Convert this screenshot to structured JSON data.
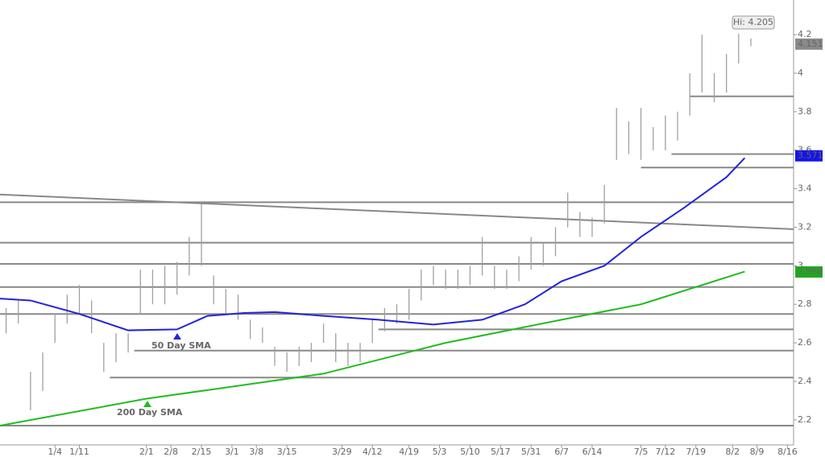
{
  "chart_data": {
    "type": "ohlc",
    "xlim": [
      -9,
      121
    ],
    "ylim": [
      2.07,
      4.38
    ],
    "yticks": [
      2.2,
      2.4,
      2.6,
      2.8,
      3,
      3.2,
      3.4,
      3.6,
      3.8,
      4,
      4.2
    ],
    "xticks": [
      {
        "value": 0,
        "label": "1/4"
      },
      {
        "value": 4,
        "label": "1/11"
      },
      {
        "value": 15,
        "label": "2/1"
      },
      {
        "value": 19,
        "label": "2/8"
      },
      {
        "value": 24,
        "label": "2/15"
      },
      {
        "value": 29,
        "label": "3/1"
      },
      {
        "value": 33,
        "label": "3/8"
      },
      {
        "value": 38,
        "label": "3/15"
      },
      {
        "value": 47,
        "label": "3/29"
      },
      {
        "value": 52,
        "label": "4/12"
      },
      {
        "value": 58,
        "label": "4/19"
      },
      {
        "value": 63,
        "label": "5/3"
      },
      {
        "value": 68,
        "label": "5/10"
      },
      {
        "value": 73,
        "label": "5/17"
      },
      {
        "value": 78,
        "label": "5/31"
      },
      {
        "value": 83,
        "label": "6/7"
      },
      {
        "value": 88,
        "label": "6/14"
      },
      {
        "value": 96,
        "label": "7/5"
      },
      {
        "value": 100,
        "label": "7/12"
      },
      {
        "value": 105,
        "label": "7/19"
      },
      {
        "value": 111,
        "label": "8/2"
      },
      {
        "value": 115,
        "label": "8/9"
      },
      {
        "value": 120,
        "label": "8/16"
      }
    ],
    "bars": {
      "color": "#a0a0a0",
      "x": [
        -8,
        -6,
        -4,
        -2,
        0,
        2,
        4,
        6,
        8,
        10,
        12,
        14,
        16,
        18,
        20,
        22,
        24,
        26,
        28,
        30,
        32,
        34,
        36,
        38,
        40,
        42,
        44,
        46,
        48,
        50,
        52,
        54,
        56,
        58,
        60,
        62,
        64,
        66,
        68,
        70,
        72,
        74,
        76,
        78,
        80,
        82,
        84,
        86,
        88,
        90,
        92,
        94,
        96,
        98,
        100,
        102,
        104,
        106,
        108,
        110,
        112,
        114
      ],
      "high": [
        2.78,
        2.82,
        2.45,
        2.55,
        2.75,
        2.85,
        2.9,
        2.82,
        2.6,
        2.65,
        2.65,
        2.98,
        2.98,
        3.0,
        3.02,
        3.15,
        3.32,
        2.95,
        2.88,
        2.85,
        2.72,
        2.68,
        2.58,
        2.55,
        2.58,
        2.6,
        2.7,
        2.65,
        2.6,
        2.6,
        2.72,
        2.78,
        2.8,
        2.88,
        2.98,
        3.0,
        2.98,
        2.98,
        3.0,
        3.15,
        3.0,
        2.98,
        3.05,
        3.15,
        3.12,
        3.2,
        3.38,
        3.28,
        3.25,
        3.42,
        3.82,
        3.75,
        3.82,
        3.72,
        3.78,
        3.8,
        4.0,
        4.2,
        4.0,
        4.1,
        4.205,
        4.18
      ],
      "low": [
        2.65,
        2.7,
        2.25,
        2.35,
        2.6,
        2.7,
        2.75,
        2.65,
        2.45,
        2.5,
        2.55,
        2.75,
        2.8,
        2.8,
        2.85,
        2.95,
        3.0,
        2.8,
        2.75,
        2.72,
        2.62,
        2.6,
        2.48,
        2.45,
        2.48,
        2.5,
        2.6,
        2.5,
        2.48,
        2.5,
        2.6,
        2.66,
        2.7,
        2.72,
        2.82,
        2.9,
        2.88,
        2.88,
        2.9,
        2.95,
        2.88,
        2.88,
        2.92,
        2.98,
        3.0,
        3.05,
        3.2,
        3.15,
        3.15,
        3.22,
        3.55,
        3.58,
        3.55,
        3.6,
        3.6,
        3.65,
        3.78,
        3.9,
        3.85,
        3.9,
        4.05,
        4.14
      ]
    },
    "hi_label": "Hi: 4.205",
    "last_close": 4.151,
    "series": [
      {
        "name": "50 Day SMA",
        "color": "#2424d8",
        "last_value": 3.571,
        "tag_color": "#1414e6",
        "x": [
          -9,
          -4,
          4,
          12,
          20,
          25,
          31,
          36,
          44,
          53,
          62,
          70,
          77,
          83,
          90,
          96,
          103,
          110,
          113
        ],
        "values": [
          2.83,
          2.82,
          2.75,
          2.665,
          2.67,
          2.74,
          2.755,
          2.76,
          2.74,
          2.72,
          2.695,
          2.72,
          2.8,
          2.92,
          3.0,
          3.15,
          3.3,
          3.46,
          3.56
        ]
      },
      {
        "name": "200 Day SMA",
        "color": "#22bb22",
        "last_value": 2.968,
        "tag_color": "#1ea81e",
        "x": [
          -9,
          15,
          44,
          64,
          83,
          96,
          113
        ],
        "values": [
          2.17,
          2.31,
          2.44,
          2.6,
          2.72,
          2.8,
          2.97
        ]
      }
    ],
    "levels": [
      {
        "value": 3.88,
        "from": 104
      },
      {
        "value": 3.58,
        "from": 101
      },
      {
        "value": 3.51,
        "from": 96
      },
      {
        "value": 3.33,
        "from": -9
      },
      {
        "value": 3.12,
        "from": -9
      },
      {
        "value": 3.01,
        "from": -9
      },
      {
        "value": 2.89,
        "from": -9
      },
      {
        "value": 2.75,
        "from": -9
      },
      {
        "value": 2.67,
        "from": 53
      },
      {
        "value": 2.56,
        "from": 13
      },
      {
        "value": 2.42,
        "from": 9
      },
      {
        "value": 2.17,
        "from": -9
      }
    ],
    "trendline": {
      "x": [
        -9,
        121
      ],
      "values": [
        3.37,
        3.19
      ]
    }
  }
}
